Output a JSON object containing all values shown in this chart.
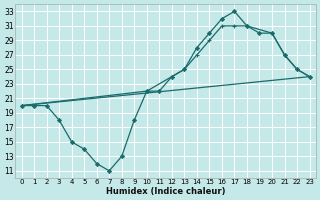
{
  "xlabel": "Humidex (Indice chaleur)",
  "bg_color": "#c5e8e8",
  "line_color": "#1a6b6b",
  "grid_color": "#ffffff",
  "xlim": [
    -0.5,
    23.5
  ],
  "ylim": [
    10,
    34
  ],
  "xticks": [
    0,
    1,
    2,
    3,
    4,
    5,
    6,
    7,
    8,
    9,
    10,
    11,
    12,
    13,
    14,
    15,
    16,
    17,
    18,
    19,
    20,
    21,
    22,
    23
  ],
  "yticks": [
    11,
    13,
    15,
    17,
    19,
    21,
    23,
    25,
    27,
    29,
    31,
    33
  ],
  "series_straight": {
    "x": [
      0,
      23
    ],
    "y": [
      20,
      24
    ]
  },
  "series_mid": {
    "x": [
      0,
      10,
      12,
      13,
      14,
      15,
      16,
      17,
      18,
      20,
      21,
      22,
      23
    ],
    "y": [
      20,
      22,
      24,
      25,
      27,
      29,
      31,
      31,
      31,
      30,
      27,
      25,
      24
    ]
  },
  "series_marked": {
    "x": [
      0,
      1,
      2,
      3,
      4,
      5,
      6,
      7,
      8,
      9,
      10,
      11,
      12,
      13,
      14,
      15,
      16,
      17,
      18,
      19,
      20,
      21,
      22,
      23
    ],
    "y": [
      20,
      20,
      20,
      18,
      15,
      14,
      12,
      11,
      13,
      18,
      22,
      22,
      24,
      25,
      28,
      30,
      32,
      33,
      31,
      30,
      30,
      27,
      25,
      24
    ]
  }
}
